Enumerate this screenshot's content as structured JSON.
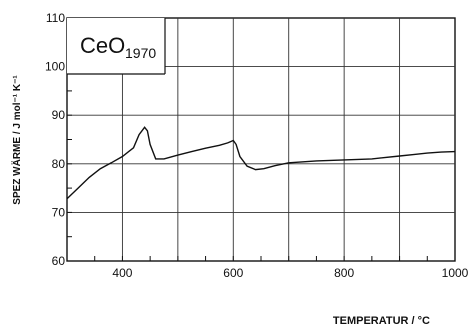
{
  "chart_data": {
    "type": "line",
    "title": "CeO",
    "title_subscript": "1970",
    "xlabel": "TEMPERATUR / °C",
    "ylabel": "SPEZ WÄRME / J mol⁻¹ K⁻¹",
    "xlim": [
      300,
      1000
    ],
    "ylim": [
      60,
      110
    ],
    "x_ticks": [
      400,
      600,
      800,
      1000
    ],
    "y_ticks": [
      60,
      70,
      80,
      90,
      100,
      110
    ],
    "grid": true,
    "series": [
      {
        "x": [
          300,
          320,
          340,
          360,
          380,
          400,
          420,
          430,
          440,
          445,
          450,
          460,
          475,
          500,
          525,
          550,
          575,
          590,
          600,
          605,
          612,
          625,
          640,
          655,
          675,
          700,
          750,
          800,
          850,
          900,
          925,
          950,
          975,
          1000
        ],
        "y": [
          72.8,
          75,
          77.2,
          79,
          80.2,
          81.5,
          83.3,
          86,
          87.5,
          86.8,
          84,
          81,
          81,
          81.8,
          82.5,
          83.2,
          83.8,
          84.3,
          84.8,
          84,
          81.5,
          79.5,
          78.8,
          79,
          79.6,
          80.2,
          80.6,
          80.8,
          81,
          81.6,
          81.9,
          82.2,
          82.4,
          82.5
        ]
      }
    ]
  }
}
